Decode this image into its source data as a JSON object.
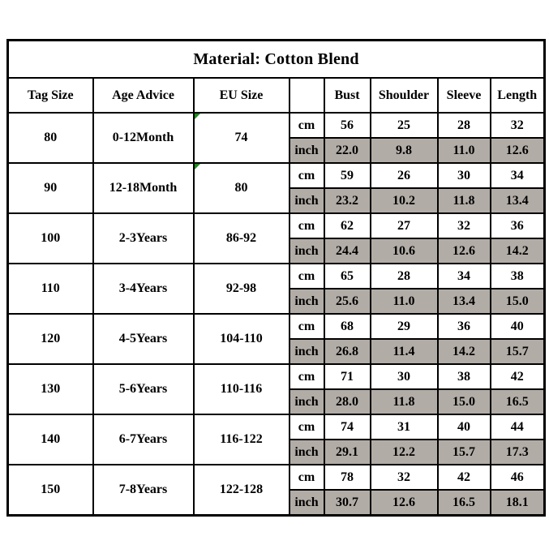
{
  "chart_data": {
    "type": "table",
    "title": "Material: Cotton Blend",
    "columns": [
      "Tag Size",
      "Age Advice",
      "EU Size",
      "",
      "Bust",
      "Shoulder",
      "Sleeve",
      "Length"
    ],
    "measure_columns": [
      "Bust",
      "Shoulder",
      "Sleeve",
      "Length"
    ],
    "unit_labels": [
      "cm",
      "inch"
    ],
    "rows": [
      {
        "tag_size": "80",
        "age_advice": "0-12Month",
        "eu_size": "74",
        "corner_marker": true,
        "cm": [
          "56",
          "25",
          "28",
          "32"
        ],
        "inch": [
          "22.0",
          "9.8",
          "11.0",
          "12.6"
        ]
      },
      {
        "tag_size": "90",
        "age_advice": "12-18Month",
        "eu_size": "80",
        "corner_marker": true,
        "cm": [
          "59",
          "26",
          "30",
          "34"
        ],
        "inch": [
          "23.2",
          "10.2",
          "11.8",
          "13.4"
        ]
      },
      {
        "tag_size": "100",
        "age_advice": "2-3Years",
        "eu_size": "86-92",
        "corner_marker": false,
        "cm": [
          "62",
          "27",
          "32",
          "36"
        ],
        "inch": [
          "24.4",
          "10.6",
          "12.6",
          "14.2"
        ]
      },
      {
        "tag_size": "110",
        "age_advice": "3-4Years",
        "eu_size": "92-98",
        "corner_marker": false,
        "cm": [
          "65",
          "28",
          "34",
          "38"
        ],
        "inch": [
          "25.6",
          "11.0",
          "13.4",
          "15.0"
        ]
      },
      {
        "tag_size": "120",
        "age_advice": "4-5Years",
        "eu_size": "104-110",
        "corner_marker": false,
        "cm": [
          "68",
          "29",
          "36",
          "40"
        ],
        "inch": [
          "26.8",
          "11.4",
          "14.2",
          "15.7"
        ]
      },
      {
        "tag_size": "130",
        "age_advice": "5-6Years",
        "eu_size": "110-116",
        "corner_marker": false,
        "cm": [
          "71",
          "30",
          "38",
          "42"
        ],
        "inch": [
          "28.0",
          "11.8",
          "15.0",
          "16.5"
        ]
      },
      {
        "tag_size": "140",
        "age_advice": "6-7Years",
        "eu_size": "116-122",
        "corner_marker": false,
        "cm": [
          "74",
          "31",
          "40",
          "44"
        ],
        "inch": [
          "29.1",
          "12.2",
          "15.7",
          "17.3"
        ]
      },
      {
        "tag_size": "150",
        "age_advice": "7-8Years",
        "eu_size": "122-128",
        "corner_marker": false,
        "cm": [
          "78",
          "32",
          "42",
          "46"
        ],
        "inch": [
          "30.7",
          "12.6",
          "16.5",
          "18.1"
        ]
      }
    ]
  },
  "colors": {
    "background": "#ffffff",
    "border": "#000000",
    "text": "#000000",
    "inch_row_bg": "#b2aca6",
    "corner_marker_green": "#1f8a1f"
  }
}
